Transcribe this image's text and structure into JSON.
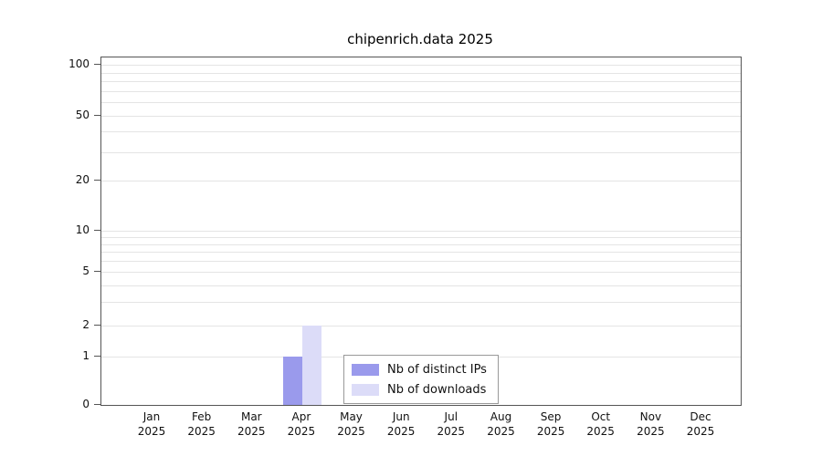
{
  "chart_data": {
    "type": "bar",
    "title": "chipenrich.data 2025",
    "year": "2025",
    "categories": [
      "Jan",
      "Feb",
      "Mar",
      "Apr",
      "May",
      "Jun",
      "Jul",
      "Aug",
      "Sep",
      "Oct",
      "Nov",
      "Dec"
    ],
    "series": [
      {
        "name": "Nb of distinct IPs",
        "color": "#9a9aec",
        "values": [
          0,
          0,
          0,
          1,
          0,
          0,
          0,
          0,
          0,
          0,
          0,
          0
        ]
      },
      {
        "name": "Nb of downloads",
        "color": "#dcdcf8",
        "values": [
          0,
          0,
          0,
          2,
          0,
          0,
          0,
          0,
          0,
          0,
          0,
          0
        ]
      }
    ],
    "yticks": [
      0,
      1,
      2,
      5,
      10,
      20,
      50,
      100
    ],
    "ylim": [
      0,
      100
    ],
    "yscale": "log-like",
    "grid": "horizontal-minor",
    "legend_position": "bottom-center-inside",
    "axis_color": "#555555",
    "grid_color": "#e4e4e4"
  }
}
